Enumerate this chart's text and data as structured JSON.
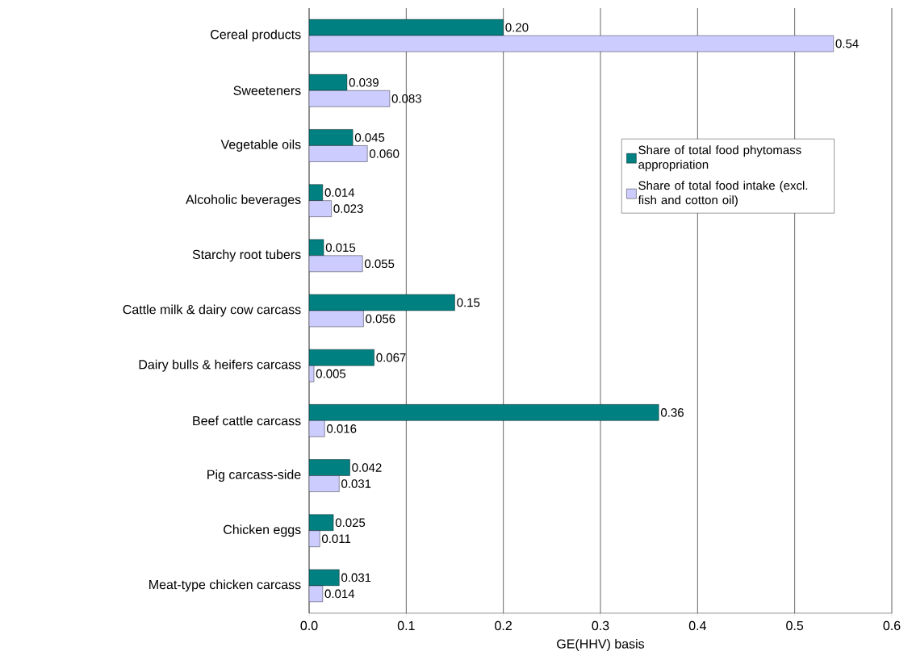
{
  "chart_data": {
    "type": "bar",
    "orientation": "horizontal",
    "xlabel": "GE(HHV) basis",
    "categories": [
      "Cereal products",
      "Sweeteners",
      "Vegetable oils",
      "Alcoholic beverages",
      "Starchy root tubers",
      "Cattle milk & dairy cow carcass",
      "Dairy bulls & heifers carcass",
      "Beef cattle carcass",
      "Pig carcass-side",
      "Chicken eggs",
      "Meat-type chicken carcass"
    ],
    "series": [
      {
        "name": "Share of total food phytomass appropriation",
        "color": "#008080",
        "values": [
          0.2,
          0.039,
          0.045,
          0.014,
          0.015,
          0.15,
          0.067,
          0.36,
          0.042,
          0.025,
          0.031
        ],
        "value_labels": [
          "0.20",
          "0.039",
          "0.045",
          "0.014",
          "0.015",
          "0.15",
          "0.067",
          "0.36",
          "0.042",
          "0.025",
          "0.031"
        ]
      },
      {
        "name": "Share of total food intake (excl. fish and cotton oil)",
        "color": "#ccccff",
        "values": [
          0.54,
          0.083,
          0.06,
          0.023,
          0.055,
          0.056,
          0.005,
          0.016,
          0.031,
          0.011,
          0.014
        ],
        "value_labels": [
          "0.54",
          "0.083",
          "0.060",
          "0.023",
          "0.055",
          "0.056",
          "0.005",
          "0.016",
          "0.031",
          "0.011",
          "0.014"
        ]
      }
    ],
    "xlim": [
      0,
      0.6
    ],
    "xticks": [
      {
        "value": 0,
        "label": "0.0"
      },
      0.1,
      0.2,
      0.3,
      0.4,
      0.5,
      0.6
    ],
    "grid": "x",
    "legend": "right"
  }
}
